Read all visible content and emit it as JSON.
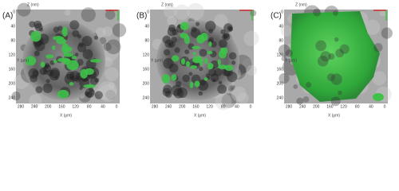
{
  "panels": [
    {
      "label": "(A)",
      "z_axis_label": "Z (nm)",
      "y_axis_label": "Y (μm)",
      "x_axis_label": "X (μm)",
      "x_ticks": [
        "280",
        "240",
        "200",
        "160",
        "120",
        "80",
        "40",
        "0"
      ],
      "y_ticks": [
        "0",
        "40",
        "80",
        "120",
        "160",
        "200",
        "240"
      ]
    },
    {
      "label": "(B)",
      "z_axis_label": "Z (nm)",
      "y_axis_label": "Y (μm)",
      "x_axis_label": "X (μm)",
      "x_ticks": [
        "280",
        "240",
        "200",
        "160",
        "120",
        "80",
        "40",
        "0"
      ],
      "y_ticks": [
        "0",
        "40",
        "80",
        "120",
        "160",
        "200",
        "240"
      ]
    },
    {
      "label": "(C)",
      "z_axis_label": "Z (nm)",
      "y_axis_label": "Y (μm)",
      "x_axis_label": "X (μm)",
      "x_ticks": [
        "280",
        "240",
        "200",
        "160",
        "120",
        "80",
        "40",
        "0"
      ],
      "y_ticks": [
        "0",
        "40",
        "80",
        "120",
        "160",
        "200",
        "240"
      ]
    }
  ]
}
